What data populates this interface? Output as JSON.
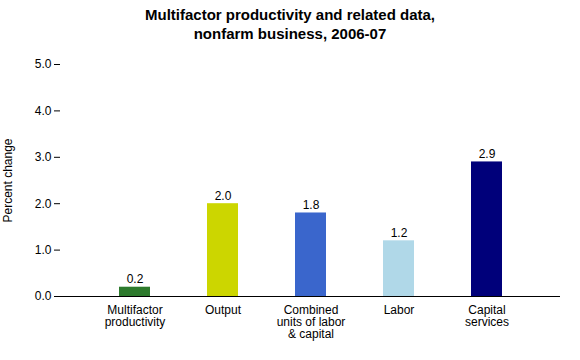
{
  "chart_data": {
    "type": "bar",
    "title": "Multifactor productivity and related data,\nnonfarm business, 2006-07",
    "categories": [
      "Multifactor\nproductivity",
      "Output",
      "Combined\nunits of labor\n& capital",
      "Labor",
      "Capital\nservices"
    ],
    "values": [
      0.2,
      2.0,
      1.8,
      1.2,
      2.9
    ],
    "value_labels": [
      "0.2",
      "2.0",
      "1.8",
      "1.2",
      "2.9"
    ],
    "colors": [
      "#2d7a2d",
      "#ccd600",
      "#3a66cc",
      "#b0d8e8",
      "#00007a"
    ],
    "ylabel": "Percent change",
    "ylim": [
      0,
      5.0
    ],
    "yticks": [
      {
        "value": 0.0,
        "label": "0.0"
      },
      {
        "value": 1.0,
        "label": "1.0"
      },
      {
        "value": 2.0,
        "label": "2.0"
      },
      {
        "value": 3.0,
        "label": "3.0"
      },
      {
        "value": 4.0,
        "label": "4.0"
      },
      {
        "value": 5.0,
        "label": "5.0"
      }
    ],
    "data_labels": true,
    "grid": false
  }
}
